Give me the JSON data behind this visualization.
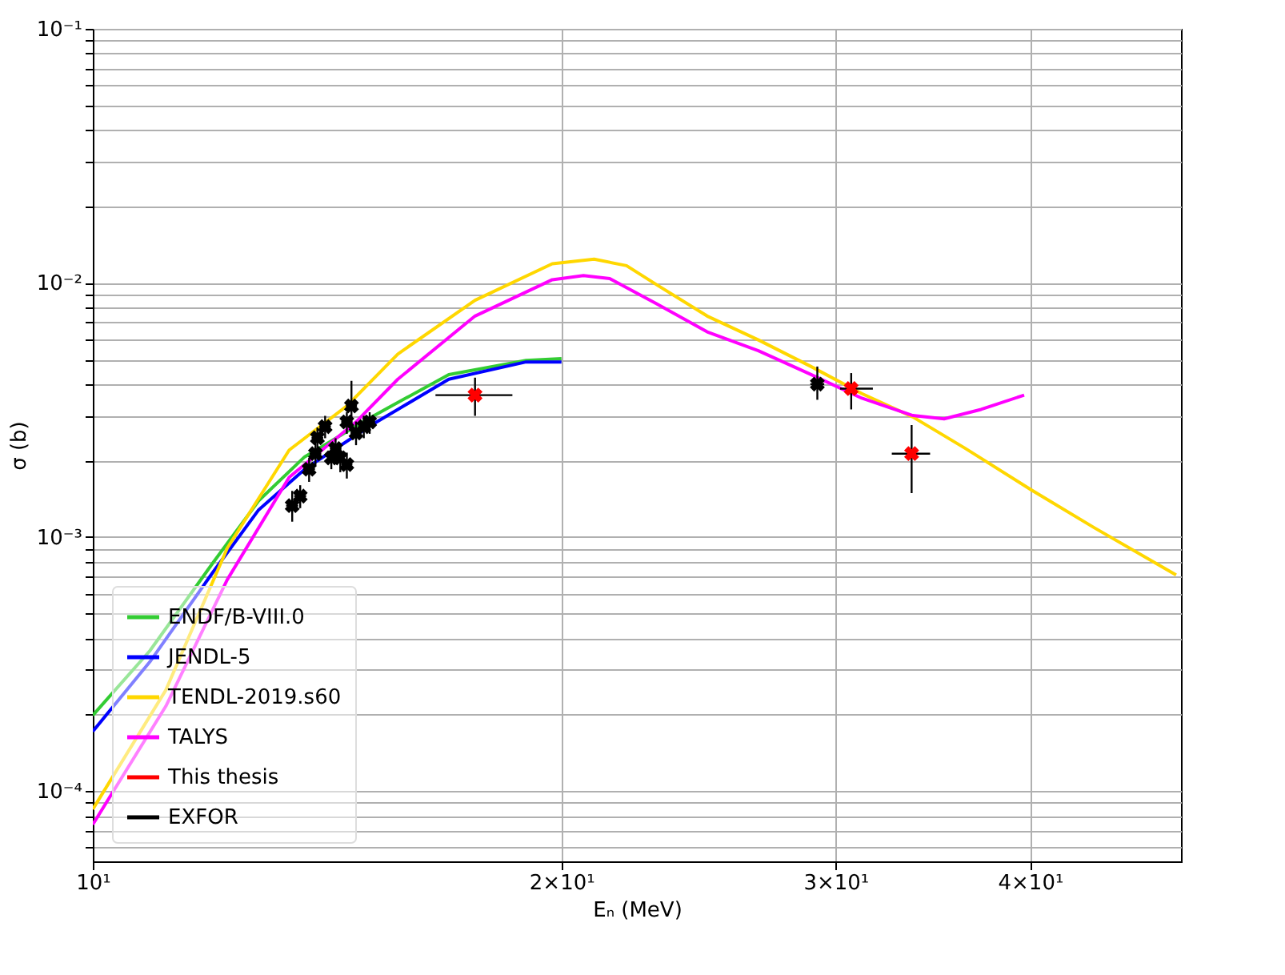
{
  "chart_data": {
    "type": "line",
    "xlabel": "Eₙ (MeV)",
    "ylabel": "σ (b)",
    "log": "xy",
    "grid": true,
    "legend": "bottom left",
    "xlim": [
      10,
      50
    ],
    "xticks": [
      {
        "value": 10,
        "label": "10¹"
      },
      {
        "value": 20,
        "label": "2×10¹"
      },
      {
        "value": 30,
        "label": "3×10¹"
      },
      {
        "value": 40,
        "label": "4×10¹"
      }
    ],
    "ylim": [
      5.3e-05,
      0.1
    ],
    "yticks": [
      {
        "value": 6e-05,
        "label": null
      },
      {
        "value": 7e-05,
        "label": null
      },
      {
        "value": 8e-05,
        "label": null
      },
      {
        "value": 9e-05,
        "label": null
      },
      {
        "value": 0.0001,
        "label": "10⁻⁴"
      },
      {
        "value": 0.0002,
        "label": null
      },
      {
        "value": 0.0003,
        "label": null
      },
      {
        "value": 0.0004,
        "label": null
      },
      {
        "value": 0.0005,
        "label": null
      },
      {
        "value": 0.0006,
        "label": null
      },
      {
        "value": 0.0007,
        "label": null
      },
      {
        "value": 0.0008,
        "label": null
      },
      {
        "value": 0.0009,
        "label": null
      },
      {
        "value": 0.001,
        "label": "10⁻³"
      },
      {
        "value": 0.002,
        "label": null
      },
      {
        "value": 0.003,
        "label": null
      },
      {
        "value": 0.004,
        "label": null
      },
      {
        "value": 0.005,
        "label": null
      },
      {
        "value": 0.006,
        "label": null
      },
      {
        "value": 0.007,
        "label": null
      },
      {
        "value": 0.008,
        "label": null
      },
      {
        "value": 0.009,
        "label": null
      },
      {
        "value": 0.01,
        "label": "10⁻²"
      },
      {
        "value": 0.02,
        "label": null
      },
      {
        "value": 0.03,
        "label": null
      },
      {
        "value": 0.04,
        "label": null
      },
      {
        "value": 0.05,
        "label": null
      },
      {
        "value": 0.06,
        "label": null
      },
      {
        "value": 0.07,
        "label": null
      },
      {
        "value": 0.08,
        "label": null
      },
      {
        "value": 0.09,
        "label": null
      },
      {
        "value": 0.1,
        "label": "10⁻¹"
      }
    ],
    "series": [
      {
        "name": "ENDF/B-VIII.0",
        "color": "#33cc33",
        "x": [
          10,
          10.88,
          11.93,
          12.78,
          13.68,
          15.1,
          16.93,
          18.98,
          20.0
        ],
        "values": [
          0.000199,
          0.000357,
          0.000784,
          0.00139,
          0.00207,
          0.00297,
          0.00436,
          0.00496,
          0.00504
        ]
      },
      {
        "name": "JENDL-5",
        "color": "#0000ff",
        "x": [
          10,
          10.88,
          11.93,
          12.78,
          13.68,
          15.1,
          16.93,
          18.98,
          20.0
        ],
        "values": [
          0.000172,
          0.000323,
          0.00072,
          0.00128,
          0.00185,
          0.00276,
          0.00418,
          0.00489,
          0.00489
        ]
      },
      {
        "name": "TENDL-2019.s60",
        "color": "#ffd700",
        "x": [
          10,
          11.14,
          12.2,
          13.37,
          14.56,
          15.7,
          17.6,
          19.73,
          20.99,
          22.02,
          23.01,
          24.81,
          26.76,
          28.93,
          31.19,
          33.63,
          36.36,
          40.03,
          43.97,
          49.64
        ],
        "values": [
          8.5e-05,
          0.00025,
          0.000905,
          0.0022,
          0.00328,
          0.00525,
          0.00855,
          0.0119,
          0.0124,
          0.0117,
          0.00986,
          0.00741,
          0.00597,
          0.00469,
          0.00367,
          0.00297,
          0.00223,
          0.00154,
          0.00109,
          0.00071
        ]
      },
      {
        "name": "TALYS",
        "color": "#ff00ff",
        "x": [
          10,
          11.14,
          12.2,
          13.37,
          14.76,
          15.7,
          17.6,
          19.73,
          20.66,
          21.48,
          23.01,
          24.81,
          26.76,
          28.93,
          31.19,
          33.63,
          35.22,
          37.2,
          39.65
        ],
        "values": [
          7.4e-05,
          0.000216,
          0.00068,
          0.00172,
          0.00284,
          0.00418,
          0.00741,
          0.0103,
          0.0107,
          0.0104,
          0.0083,
          0.00642,
          0.00541,
          0.00436,
          0.00352,
          0.00301,
          0.00292,
          0.00318,
          0.00362
        ]
      },
      {
        "name": "This thesis",
        "type": "scatter",
        "color": "#ff0000",
        "marker": "cross",
        "x": [
          17.6,
          30.7,
          33.57
        ],
        "values": [
          0.00362,
          0.00384,
          0.00213
        ],
        "errors": [
          [
            0.003,
            0.00424
          ],
          [
            0.00318,
            0.00442
          ],
          [
            0.00149,
            0.00276
          ]
        ],
        "xerrors": [
          [
            16.6,
            18.6
          ],
          [
            30.2,
            31.7
          ],
          [
            32.6,
            34.5
          ]
        ]
      },
      {
        "name": "EXFOR",
        "type": "scatter",
        "color": "#000000",
        "marker": "cross",
        "x": [
          13.43,
          13.59,
          13.77,
          13.94,
          14.1,
          14.32,
          14.56,
          14.66,
          14.76,
          14.93,
          15.06,
          14.23,
          14.42,
          13.9,
          14.56,
          29.2
        ],
        "values": [
          0.00133,
          0.00145,
          0.00185,
          0.00246,
          0.00272,
          0.00223,
          0.00284,
          0.00328,
          0.00257,
          0.00272,
          0.00284,
          0.00205,
          0.00205,
          0.00213,
          0.00193,
          0.004
        ],
        "errors": [
          [
            0.00115,
            0.00152
          ],
          [
            0.0013,
            0.0016
          ],
          [
            0.00165,
            0.00205
          ],
          [
            0.0022,
            0.0027
          ],
          [
            0.00245,
            0.003
          ],
          [
            0.002,
            0.00245
          ],
          [
            0.00255,
            0.0031
          ],
          [
            0.0026,
            0.00412
          ],
          [
            0.0023,
            0.00285
          ],
          [
            0.00245,
            0.003
          ],
          [
            0.00255,
            0.0031
          ],
          [
            0.00185,
            0.00225
          ],
          [
            0.0018,
            0.0023
          ],
          [
            0.0019,
            0.00235
          ],
          [
            0.0017,
            0.00215
          ],
          [
            0.00347,
            0.00469
          ]
        ],
        "xerrors": [
          [
            13.31,
            13.55
          ],
          [
            13.47,
            13.71
          ],
          [
            13.65,
            13.89
          ],
          [
            13.82,
            14.06
          ],
          [
            13.98,
            14.22
          ],
          [
            14.2,
            14.44
          ],
          [
            14.44,
            14.68
          ],
          [
            14.54,
            14.78
          ],
          [
            14.64,
            14.88
          ],
          [
            14.81,
            15.05
          ],
          [
            14.94,
            15.18
          ],
          null,
          null,
          [
            13.78,
            14.02
          ],
          [
            14.44,
            14.68
          ],
          [
            28.9,
            29.5
          ]
        ]
      }
    ]
  }
}
